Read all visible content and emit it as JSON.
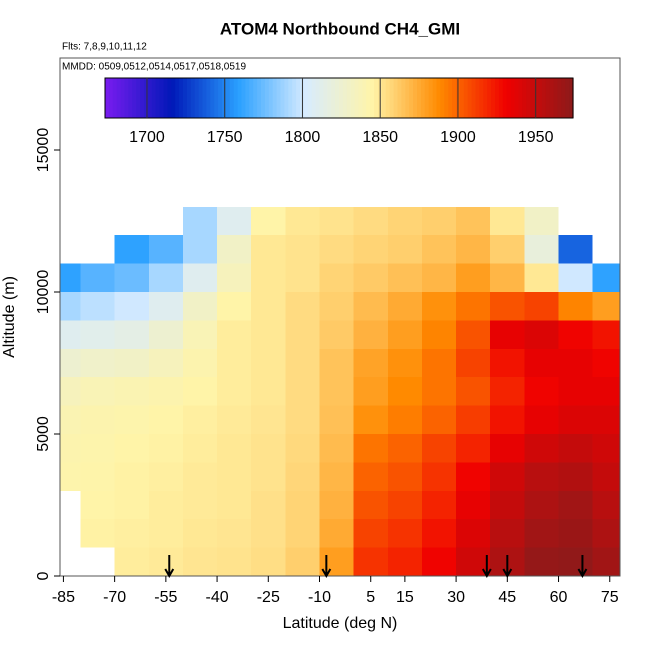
{
  "chart_data": {
    "type": "heatmap",
    "title": "ATOM4 Northbound CH4_GMI",
    "subtitle": "Flts: 7,8,9,10,11,12",
    "annotation": "MMDD: 0509,0512,0514,0517,0518,0519",
    "x_label": "Latitude (deg N)",
    "y_label": "Altitude (m)",
    "xlim": [
      -86,
      78
    ],
    "ylim": [
      0,
      18240
    ],
    "xticks": [
      -85,
      -70,
      -55,
      -40,
      -25,
      -10,
      5,
      15,
      30,
      45,
      60,
      75
    ],
    "yticks": [
      0,
      5000,
      10000,
      15000
    ],
    "x": [
      -85,
      -75,
      -65,
      -55,
      -45,
      -35,
      -25,
      -15,
      -5,
      5,
      15,
      25,
      35,
      45,
      55,
      65,
      75
    ],
    "y": [
      500,
      1500,
      2500,
      3500,
      4500,
      5500,
      6500,
      7500,
      8500,
      9500,
      10500,
      11500,
      12500
    ],
    "values": [
      [
        null,
        null,
        1848,
        1849,
        1851,
        1852,
        1854,
        1860,
        1880,
        1915,
        1920,
        1930,
        1945,
        1960,
        1970,
        1972,
        1965
      ],
      [
        null,
        1846,
        1847,
        1848,
        1850,
        1851,
        1853,
        1858,
        1875,
        1910,
        1915,
        1925,
        1940,
        1955,
        1965,
        1968,
        1960
      ],
      [
        null,
        1845,
        1846,
        1848,
        1849,
        1850,
        1853,
        1858,
        1872,
        1905,
        1910,
        1920,
        1935,
        1950,
        1960,
        1965,
        1955
      ],
      [
        1843,
        1844,
        1846,
        1847,
        1849,
        1850,
        1852,
        1857,
        1870,
        1900,
        1905,
        1915,
        1930,
        1945,
        1955,
        1958,
        1950
      ],
      [
        1842,
        1843,
        1845,
        1846,
        1848,
        1850,
        1852,
        1856,
        1868,
        1895,
        1900,
        1910,
        1920,
        1935,
        1945,
        1950,
        1945
      ],
      [
        1840,
        1842,
        1843,
        1845,
        1847,
        1849,
        1851,
        1855,
        1866,
        1885,
        1892,
        1900,
        1912,
        1925,
        1935,
        1940,
        1940
      ],
      [
        1835,
        1838,
        1840,
        1842,
        1845,
        1848,
        1850,
        1855,
        1865,
        1880,
        1888,
        1895,
        1905,
        1920,
        1930,
        1935,
        1935
      ],
      [
        1825,
        1828,
        1830,
        1835,
        1842,
        1848,
        1850,
        1855,
        1865,
        1878,
        1885,
        1895,
        1910,
        1925,
        1935,
        1935,
        1930
      ],
      [
        1810,
        1812,
        1815,
        1825,
        1838,
        1848,
        1850,
        1855,
        1862,
        1872,
        1880,
        1890,
        1905,
        1935,
        1940,
        1930,
        1925
      ],
      [
        1790,
        1795,
        1800,
        1810,
        1830,
        1845,
        1850,
        1855,
        1860,
        1868,
        1875,
        1885,
        1895,
        1905,
        1910,
        1890,
        1880
      ],
      [
        1760,
        1770,
        1775,
        1790,
        1810,
        1835,
        1850,
        1852,
        1858,
        1862,
        1866,
        1870,
        1880,
        1870,
        1850,
        1800,
        1760
      ],
      [
        null,
        null,
        1760,
        1770,
        1790,
        1830,
        1850,
        1852,
        1855,
        1858,
        1860,
        1865,
        1870,
        1860,
        1820,
        1740,
        null
      ],
      [
        null,
        null,
        null,
        null,
        1790,
        1810,
        1845,
        1850,
        1852,
        1855,
        1858,
        1860,
        1865,
        1850,
        1830,
        null,
        null
      ]
    ],
    "arrows": [
      -54,
      -8,
      39,
      45,
      67
    ],
    "colorbar": {
      "lim": [
        1673,
        1974
      ],
      "ticks": [
        1700,
        1750,
        1800,
        1850,
        1900,
        1950
      ],
      "colors": [
        "#7a1cf0",
        "#0018b8",
        "#2aa0ff",
        "#d8ecff",
        "#fff4a8",
        "#ff8a00",
        "#f00000",
        "#8c1a1a"
      ]
    }
  }
}
